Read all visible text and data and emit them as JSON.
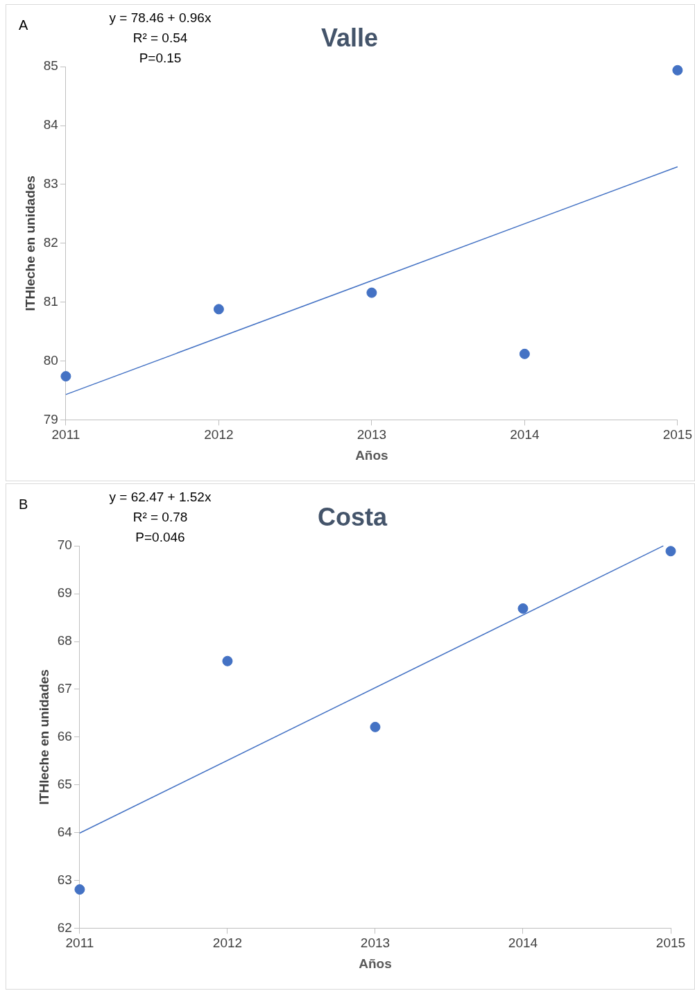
{
  "chart_data": [
    {
      "type": "scatter",
      "title": "Valle",
      "xlabel": "Años",
      "ylabel": "ITHleche en unidades",
      "annotations": [
        "A",
        "y = 78.46 + 0.96x",
        "R² = 0.54",
        "P=0.15"
      ],
      "x": [
        2011,
        2012,
        2013,
        2014,
        2015
      ],
      "xlim": [
        2011,
        2015
      ],
      "xticks": [
        2011,
        2012,
        2013,
        2014,
        2015
      ],
      "ylim": [
        79,
        85
      ],
      "yticks": [
        79,
        80,
        81,
        82,
        83,
        84,
        85
      ],
      "grid": false,
      "legend": false,
      "marker": "circle",
      "series": [
        {
          "type": "scatter",
          "color": "#4472c4",
          "values": [
            79.74,
            80.88,
            81.16,
            80.12,
            84.94
          ]
        },
        {
          "type": "line",
          "color": "#4472c4",
          "x": [
            2011,
            2015
          ],
          "values": [
            79.43,
            83.3
          ],
          "marker": "none"
        }
      ]
    },
    {
      "type": "scatter",
      "title": "Costa",
      "xlabel": "Años",
      "ylabel": "ITHleche en unidades",
      "annotations": [
        "B",
        "y = 62.47 + 1.52x",
        "R² = 0.78",
        "P=0.046"
      ],
      "x": [
        2011,
        2012,
        2013,
        2014,
        2015
      ],
      "xlim": [
        2011,
        2015
      ],
      "xticks": [
        2011,
        2012,
        2013,
        2014,
        2015
      ],
      "ylim": [
        62,
        70
      ],
      "yticks": [
        62,
        63,
        64,
        65,
        66,
        67,
        68,
        69,
        70
      ],
      "grid": false,
      "legend": false,
      "marker": "circle",
      "series": [
        {
          "type": "scatter",
          "color": "#4472c4",
          "values": [
            62.81,
            67.59,
            66.21,
            68.69,
            69.89
          ]
        },
        {
          "type": "line",
          "color": "#4472c4",
          "x": [
            2011,
            2014.95
          ],
          "values": [
            63.99,
            70.0
          ],
          "marker": "none"
        }
      ]
    }
  ]
}
